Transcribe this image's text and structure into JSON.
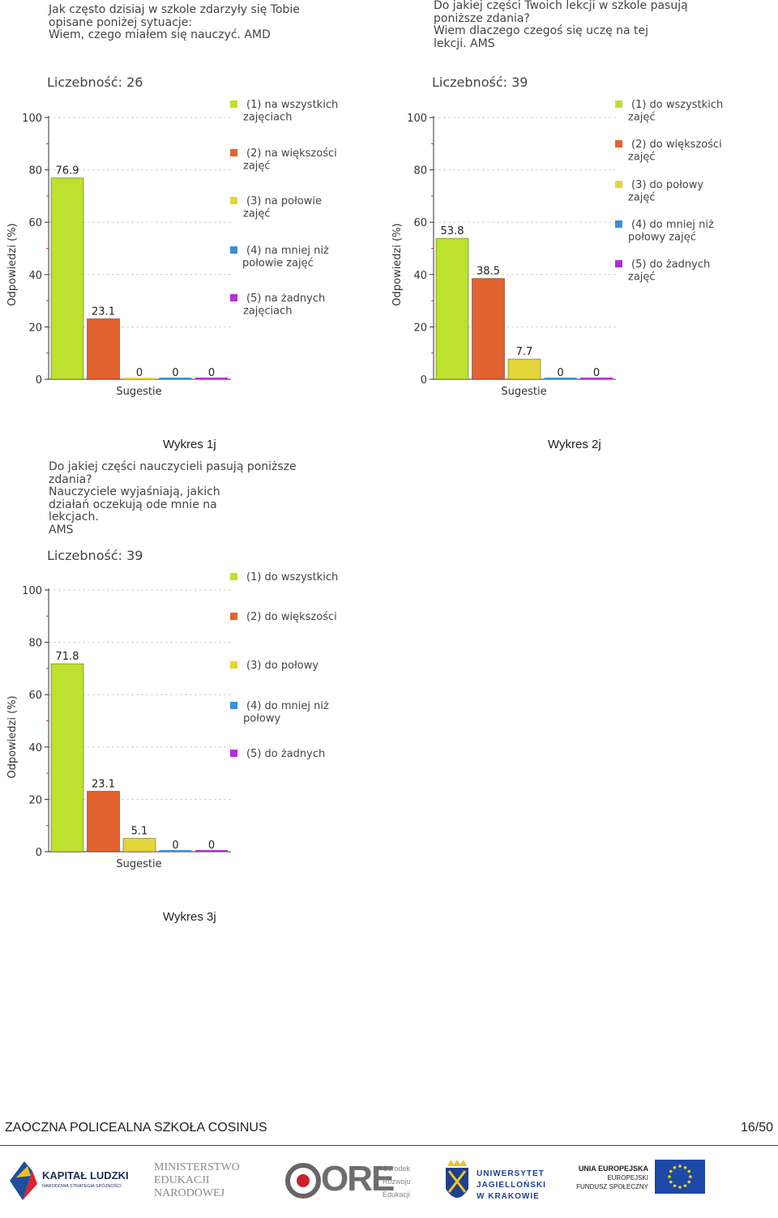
{
  "charts": [
    {
      "question": "Jak często dzisiaj w szkole zdarzyły się Tobie\nopisane poniżej sytuacje:\nWiem, czego miałem się nauczyć. AMD",
      "count_label": "Liczebność: 26",
      "caption": "Wykres 1j",
      "legend": [
        "(1) na wszystkich\nzajęciach",
        "(2) na większości\nzajęć",
        "(3) na połowie\nzajęć",
        "(4) na mniej niż\npołowie zajęć",
        "(5) na żadnych\nzajęciach"
      ]
    },
    {
      "question": "Do jakiej części Twoich lekcji w szkole pasują\nponiższe zdania?\nWiem dlaczego czegoś się uczę na tej\nlekcji. AMS",
      "count_label": "Liczebność: 39",
      "caption": "Wykres 2j",
      "legend": [
        "(1) do wszystkich\nzajęć",
        "(2) do większości\nzajęć",
        "(3) do połowy\nzajęć",
        "(4) do mniej niż\npołowy zajęć",
        "(5) do żadnych\nzajęć"
      ]
    },
    {
      "question": "Do jakiej części nauczycieli pasują poniższe\nzdania?\nNauczyciele wyjaśniają, jakich\ndziałań oczekują ode mnie na\nlekcjach.\n AMS",
      "count_label": "Liczebność: 39",
      "caption": "Wykres 3j",
      "legend": [
        "(1) do wszystkich",
        "(2) do większości",
        "(3) do połowy",
        "(4) do mniej niż\npołowy",
        "(5) do żadnych"
      ]
    }
  ],
  "chart_data": [
    {
      "type": "bar",
      "title": "Liczebność: 26",
      "categories": [
        "1",
        "2",
        "3",
        "4",
        "5"
      ],
      "values": [
        76.9,
        23.1,
        0,
        0,
        0
      ],
      "value_labels": [
        "76.9",
        "23.1",
        "0",
        "0",
        "0"
      ],
      "xlabel": "Sugestie",
      "ylabel": "Odpowiedzi (%)",
      "ylim": [
        0,
        100
      ],
      "yticks": [
        "0",
        "20",
        "40",
        "60",
        "80",
        "100"
      ],
      "colors": [
        "#bde12e",
        "#e26230",
        "#e4d53a",
        "#3a8fd6",
        "#b12fcf"
      ]
    },
    {
      "type": "bar",
      "title": "Liczebność: 39",
      "categories": [
        "1",
        "2",
        "3",
        "4",
        "5"
      ],
      "values": [
        53.8,
        38.5,
        7.7,
        0,
        0
      ],
      "value_labels": [
        "53.8",
        "38.5",
        "7.7",
        "0",
        "0"
      ],
      "xlabel": "Sugestie",
      "ylabel": "Odpowiedzi (%)",
      "ylim": [
        0,
        100
      ],
      "yticks": [
        "0",
        "20",
        "40",
        "60",
        "80",
        "100"
      ],
      "colors": [
        "#bde12e",
        "#e26230",
        "#e4d53a",
        "#3a8fd6",
        "#b12fcf"
      ]
    },
    {
      "type": "bar",
      "title": "Liczebność: 39",
      "categories": [
        "1",
        "2",
        "3",
        "4",
        "5"
      ],
      "values": [
        71.8,
        23.1,
        5.1,
        0,
        0
      ],
      "value_labels": [
        "71.8",
        "23.1",
        "5.1",
        "0",
        "0"
      ],
      "xlabel": "Sugestie",
      "ylabel": "Odpowiedzi (%)",
      "ylim": [
        0,
        100
      ],
      "yticks": [
        "0",
        "20",
        "40",
        "60",
        "80",
        "100"
      ],
      "colors": [
        "#bde12e",
        "#e26230",
        "#e4d53a",
        "#3a8fd6",
        "#b12fcf"
      ]
    }
  ],
  "footer": {
    "school": "ZAOCZNA POLICEALNA SZKOŁA COSINUS",
    "page": "16/50"
  },
  "logos": {
    "kapital": "KAPITAŁ LUDZKI",
    "kapital_sub": "NARODOWA STRATEGIA SPÓJNOŚCI",
    "men_1": "MINISTERSTWO",
    "men_2": "EDUKACJI",
    "men_3": "NARODOWEJ",
    "ore": "ORE",
    "ore_sub_1": "Ośrodek",
    "ore_sub_2": "Rozwoju",
    "ore_sub_3": "Edukacji",
    "uj_1": "UNIWERSYTET",
    "uj_2": "JAGIELLOŃSKI",
    "uj_3": "W KRAKOWIE",
    "eu_1": "UNIA EUROPEJSKA",
    "eu_2": "EUROPEJSKI",
    "eu_3": "FUNDUSZ SPOŁECZNY"
  }
}
